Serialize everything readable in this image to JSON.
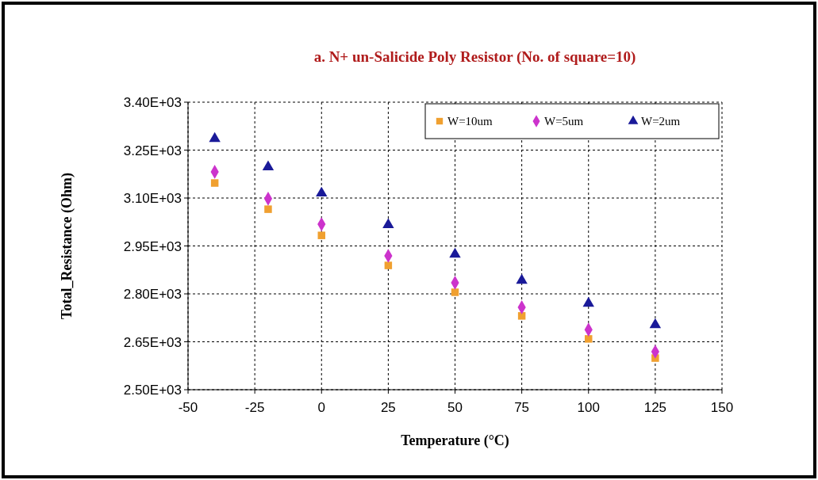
{
  "chart_data": {
    "type": "scatter",
    "title": "a. N+ un-Salicide Poly Resistor (No. of square=10)",
    "xlabel": "Temperature (°C)",
    "ylabel": "Total_Resistance (Ohm)",
    "x": [
      -40,
      -20,
      0,
      25,
      50,
      75,
      100,
      125
    ],
    "series": [
      {
        "name": "W=10um",
        "color": "#f0a030",
        "marker": "square",
        "values": [
          3147,
          3065,
          2983,
          2889,
          2805,
          2731,
          2659,
          2599
        ]
      },
      {
        "name": "W=5um",
        "color": "#cc33cc",
        "marker": "diamond",
        "values": [
          3182,
          3098,
          3018,
          2919,
          2835,
          2758,
          2688,
          2619
        ]
      },
      {
        "name": "W=2um",
        "color": "#1a1a99",
        "marker": "triangle",
        "values": [
          3286,
          3197,
          3115,
          3016,
          2924,
          2842,
          2770,
          2703
        ]
      }
    ],
    "xlim": [
      -50,
      150
    ],
    "xticks": [
      -50,
      -25,
      0,
      25,
      50,
      75,
      100,
      125,
      150
    ],
    "ylim": [
      2500,
      3400
    ],
    "yticks": [
      {
        "value": 2500,
        "label": "2.50E+03"
      },
      {
        "value": 2650,
        "label": "2.65E+03"
      },
      {
        "value": 2800,
        "label": "2.80E+03"
      },
      {
        "value": 2950,
        "label": "2.95E+03"
      },
      {
        "value": 3100,
        "label": "3.10E+03"
      },
      {
        "value": 3250,
        "label": "3.25E+03"
      },
      {
        "value": 3400,
        "label": "3.40E+03"
      }
    ],
    "grid": true,
    "legend": "top right"
  }
}
